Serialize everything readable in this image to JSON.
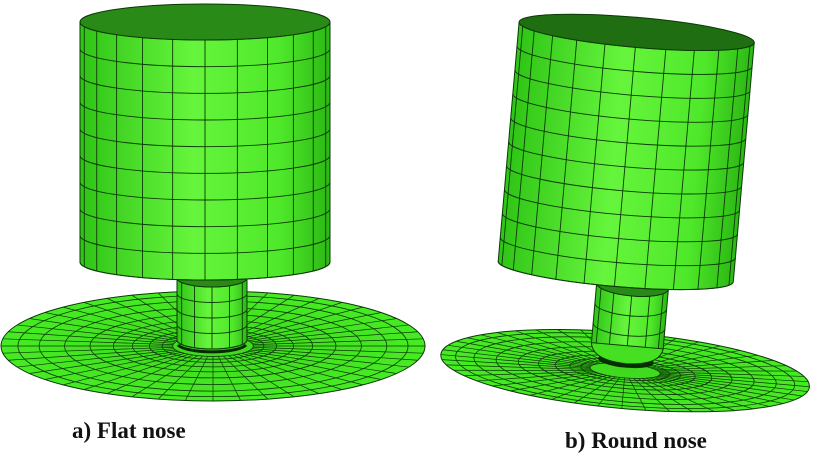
{
  "figures": [
    {
      "caption": "a) Flat nose"
    },
    {
      "caption": "b) Round nose"
    }
  ]
}
